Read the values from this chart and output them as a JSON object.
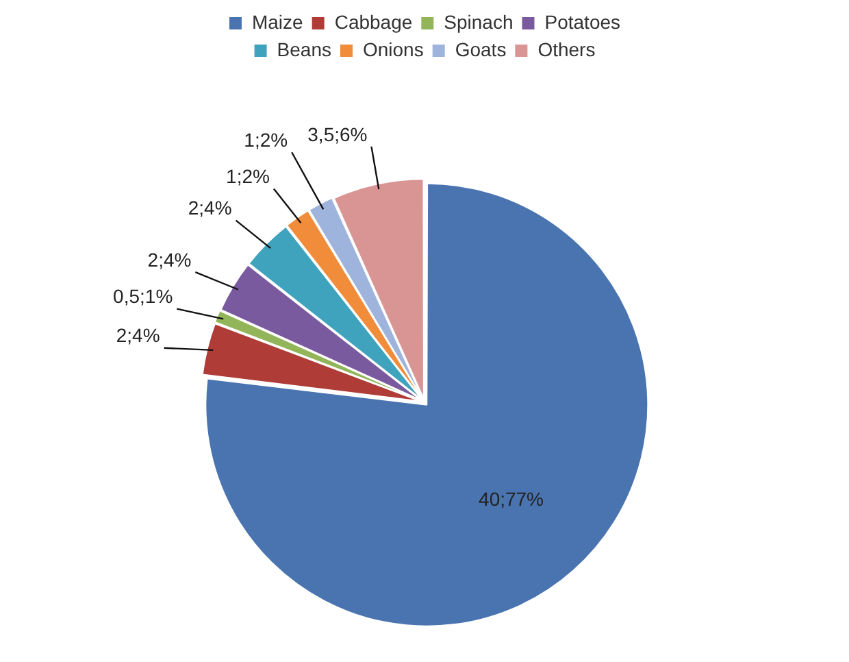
{
  "chart_data": {
    "type": "pie",
    "categories": [
      "Maize",
      "Cabbage",
      "Spinach",
      "Potatoes",
      "Beans",
      "Onions",
      "Goats",
      "Others"
    ],
    "values": [
      40,
      2,
      0.5,
      2,
      2,
      1,
      1,
      3.5
    ],
    "colors": [
      "#4a74b0",
      "#b03c38",
      "#93b55a",
      "#7a5a9e",
      "#3fa3bd",
      "#f08c3a",
      "#9fb4dc",
      "#d99594"
    ],
    "value_labels": [
      "40;77%",
      "2;4%",
      "0,5;1%",
      "2;4%",
      "2;4%",
      "1;2%",
      "1;2%",
      "3,5;6%"
    ],
    "legend": "top"
  }
}
